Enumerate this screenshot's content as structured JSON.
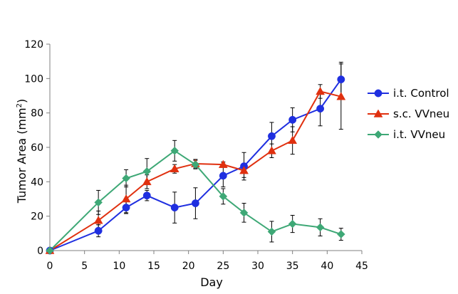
{
  "chart_data": {
    "type": "line",
    "xlabel": "Day",
    "ylabel": "Tumor Area (mm",
    "ylabel_sup": "2",
    "ylabel_close": ")",
    "xlim": [
      0,
      45
    ],
    "ylim": [
      0,
      120
    ],
    "xticks": [
      0,
      5,
      10,
      15,
      20,
      25,
      30,
      35,
      40,
      45
    ],
    "yticks": [
      0,
      20,
      40,
      60,
      80,
      100,
      120
    ],
    "grid": false,
    "legend_position": "right",
    "series": [
      {
        "name": "i.t. Control",
        "color": "#1f2fe0",
        "marker": "circle",
        "x": [
          0,
          7,
          11,
          14,
          18,
          21,
          25,
          28,
          32,
          35,
          39,
          42
        ],
        "y": [
          0,
          11.5,
          25,
          32,
          25,
          27.5,
          43.5,
          49,
          66.5,
          76,
          82.5,
          99.5
        ],
        "err": [
          0,
          3.5,
          3.5,
          3,
          9,
          9,
          6.5,
          8,
          8,
          7,
          10,
          10
        ]
      },
      {
        "name": "s.c. VVneu",
        "color": "#e0300f",
        "marker": "triangle",
        "x": [
          0,
          7,
          11,
          14,
          18,
          21,
          25,
          28,
          32,
          35,
          39,
          42
        ],
        "y": [
          0,
          17.5,
          30,
          40,
          47.5,
          50.5,
          50,
          46.5,
          58,
          64,
          92.5,
          89.5
        ],
        "err": [
          0,
          5.5,
          8,
          4,
          2.5,
          2.5,
          1.5,
          4,
          4,
          8,
          4,
          19
        ]
      },
      {
        "name": "i.t. VVneu",
        "color": "#3ea876",
        "marker": "diamond",
        "x": [
          0,
          7,
          11,
          14,
          18,
          21,
          25,
          28,
          32,
          35,
          39,
          42
        ],
        "y": [
          0,
          28,
          42,
          46,
          58,
          50,
          31.5,
          22,
          11,
          15.5,
          13.5,
          9.5
        ],
        "err": [
          0,
          7,
          5,
          7.5,
          6,
          2.5,
          4.5,
          5.5,
          6,
          5,
          5,
          3.5
        ]
      }
    ]
  }
}
